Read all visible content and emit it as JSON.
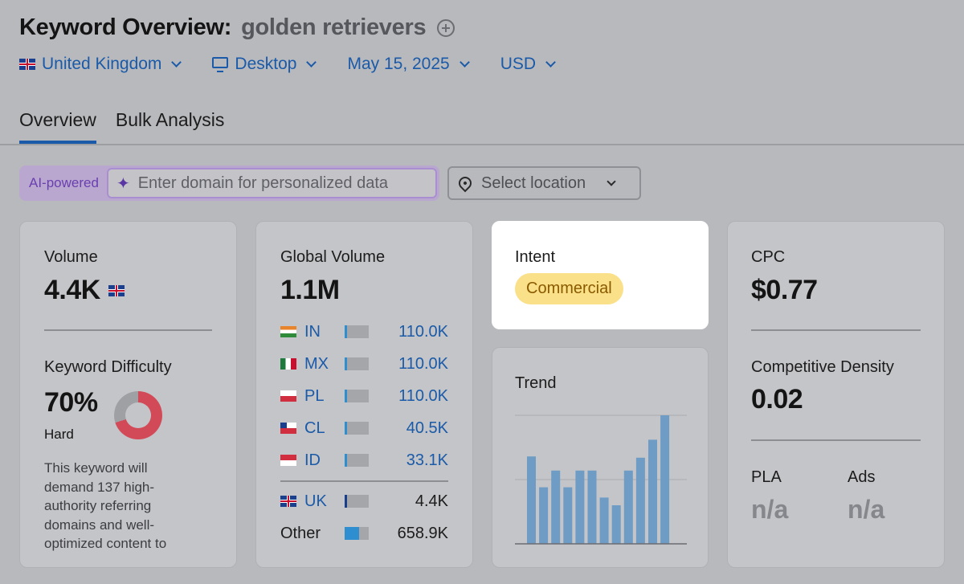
{
  "header": {
    "title": "Keyword Overview:",
    "keyword": "golden retrievers"
  },
  "filters": {
    "country": "United Kingdom",
    "device": "Desktop",
    "date": "May 15, 2025",
    "currency": "USD"
  },
  "tabs": [
    "Overview",
    "Bulk Analysis"
  ],
  "ai": {
    "label": "AI-powered",
    "placeholder": "Enter domain for personalized data"
  },
  "location": {
    "placeholder": "Select location"
  },
  "volume": {
    "label": "Volume",
    "value": "4.4K"
  },
  "kd": {
    "label": "Keyword Difficulty",
    "value": "70%",
    "level": "Hard",
    "percent": 70,
    "description": "This keyword will demand 137 high-authority referring domains and well-optimized content to"
  },
  "global": {
    "label": "Global Volume",
    "value": "1.1M",
    "countries": [
      {
        "code": "IN",
        "value": "110.0K",
        "share": 0.1
      },
      {
        "code": "MX",
        "value": "110.0K",
        "share": 0.1
      },
      {
        "code": "PL",
        "value": "110.0K",
        "share": 0.1
      },
      {
        "code": "CL",
        "value": "40.5K",
        "share": 0.04
      },
      {
        "code": "ID",
        "value": "33.1K",
        "share": 0.03
      }
    ],
    "uk": {
      "code": "UK",
      "value": "4.4K",
      "share": 0.01
    },
    "other": {
      "label": "Other",
      "value": "658.9K",
      "share": 0.6
    }
  },
  "intent": {
    "label": "Intent",
    "value": "Commercial"
  },
  "trend": {
    "label": "Trend"
  },
  "chart_data": {
    "type": "bar",
    "values": [
      0.68,
      0.44,
      0.57,
      0.44,
      0.57,
      0.57,
      0.36,
      0.3,
      0.57,
      0.67,
      0.81,
      1.0
    ]
  },
  "cpc": {
    "label": "CPC",
    "value": "$0.77"
  },
  "density": {
    "label": "Competitive Density",
    "value": "0.02"
  },
  "pla": {
    "label": "PLA",
    "value": "n/a"
  },
  "ads": {
    "label": "Ads",
    "value": "n/a"
  }
}
